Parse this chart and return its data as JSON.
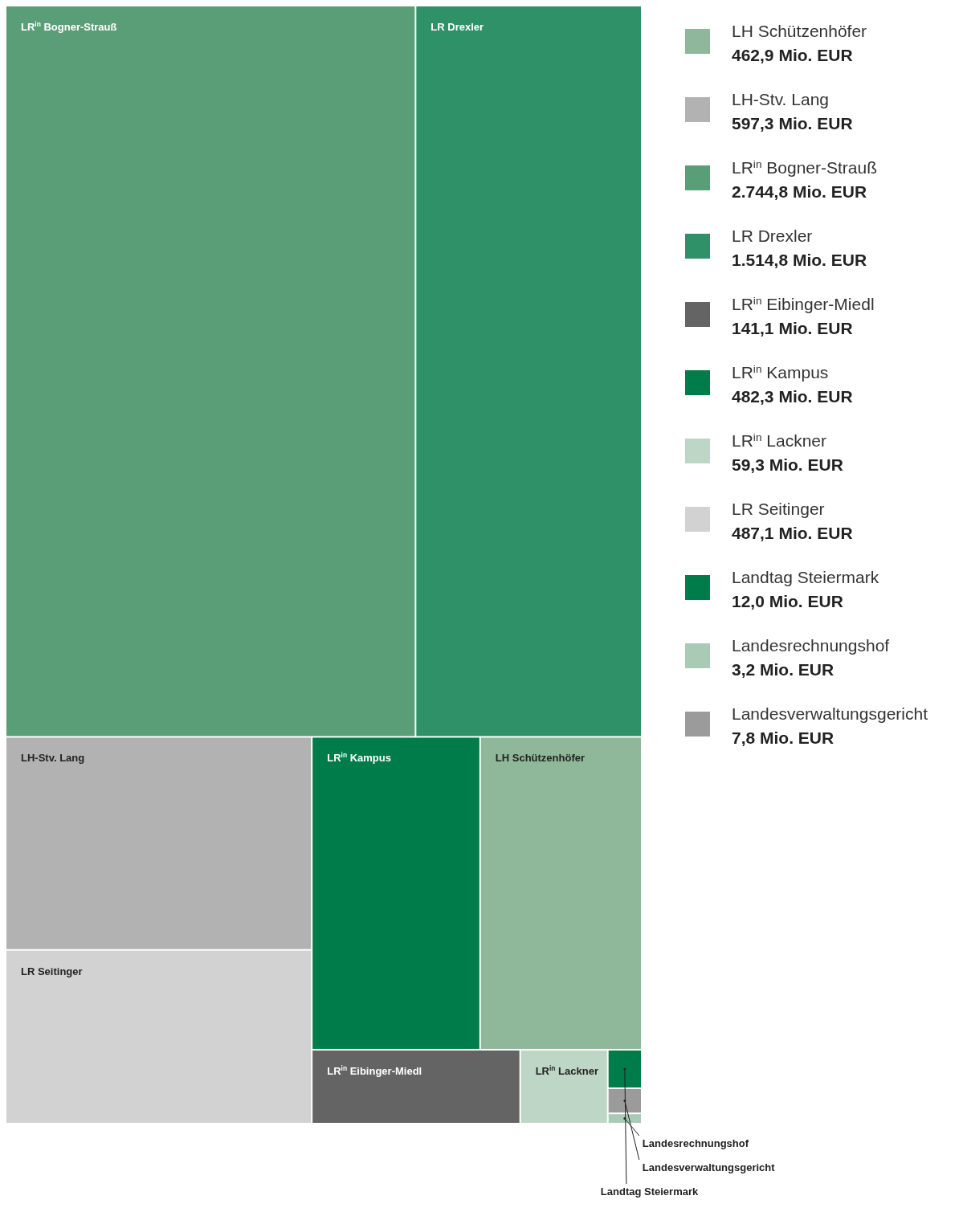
{
  "chart_data": {
    "type": "other",
    "categories": [
      "LH Schützenhöfer",
      "LH-Stv. Lang",
      "LR$^{in}$ Bogner-Strauß",
      "LR Drexler",
      "LR$^{in}$ Eibinger-Miedl",
      "LR$^{in}$ Kampus",
      "LR$^{in}$ Lackner",
      "LR Seitinger",
      "Landtag Steiermark",
      "Landesrechnungshof",
      "Landesverwaltungsgericht"
    ],
    "values": [
      462.9,
      597.3,
      2744.8,
      1514.8,
      141.1,
      482.3,
      59.3,
      487.1,
      12.0,
      3.2,
      7.8
    ],
    "value_labels": [
      "462,9 Mio. EUR",
      "597,3 Mio. EUR",
      "2.744,8 Mio. EUR",
      "1.514,8 Mio. EUR",
      "141,1 Mio. EUR",
      "482,3 Mio. EUR",
      "59,3 Mio. EUR",
      "487,1 Mio. EUR",
      "12,0 Mio. EUR",
      "3,2 Mio. EUR",
      "7,8 Mio. EUR"
    ],
    "colors": [
      "#8fb79a",
      "#b2b2b2",
      "#5a9e78",
      "#2f9168",
      "#646464",
      "#007c4a",
      "#bed6c5",
      "#d2d2d2",
      "#007c4a",
      "#a9cbb5",
      "#9b9b9b"
    ]
  }
}
